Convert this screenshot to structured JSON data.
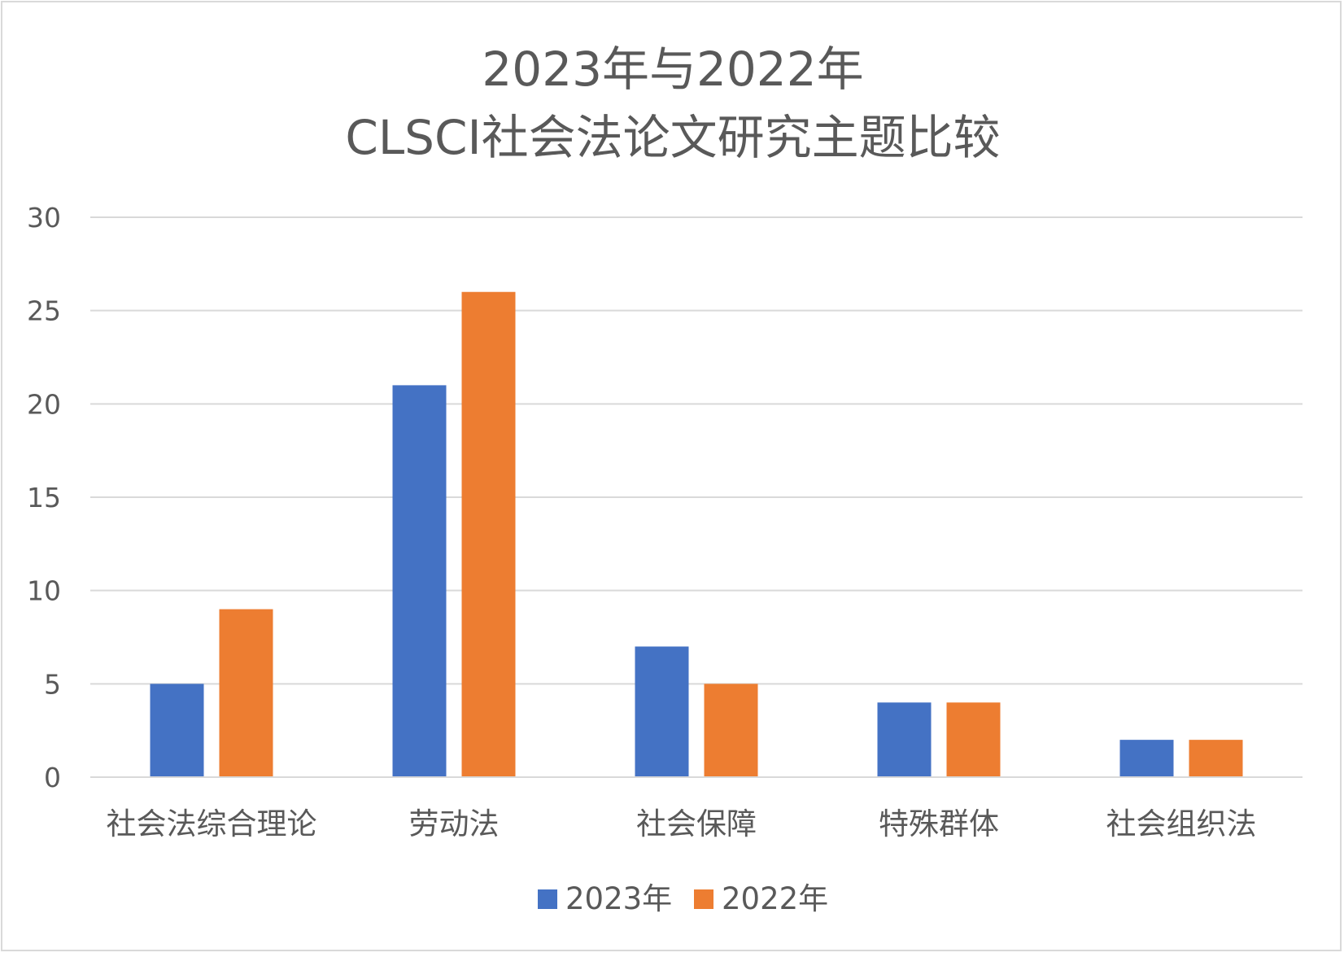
{
  "chart_data": {
    "type": "bar",
    "title_lines": [
      "2023年与2022年",
      "CLSCI社会法论文研究主题比较"
    ],
    "xlabel": "",
    "ylabel": "",
    "categories": [
      "社会法综合理论",
      "劳动法",
      "社会保障",
      "特殊群体",
      "社会组织法"
    ],
    "series": [
      {
        "name": "2023年",
        "color": "#4472C4",
        "values": [
          5,
          21,
          7,
          4,
          2
        ]
      },
      {
        "name": "2022年",
        "color": "#ED7D31",
        "values": [
          9,
          26,
          5,
          4,
          2
        ]
      }
    ],
    "ylim": [
      0,
      30
    ],
    "yticks": [
      0,
      5,
      10,
      15,
      20,
      25,
      30
    ],
    "grid": true,
    "legend": "bottom"
  }
}
